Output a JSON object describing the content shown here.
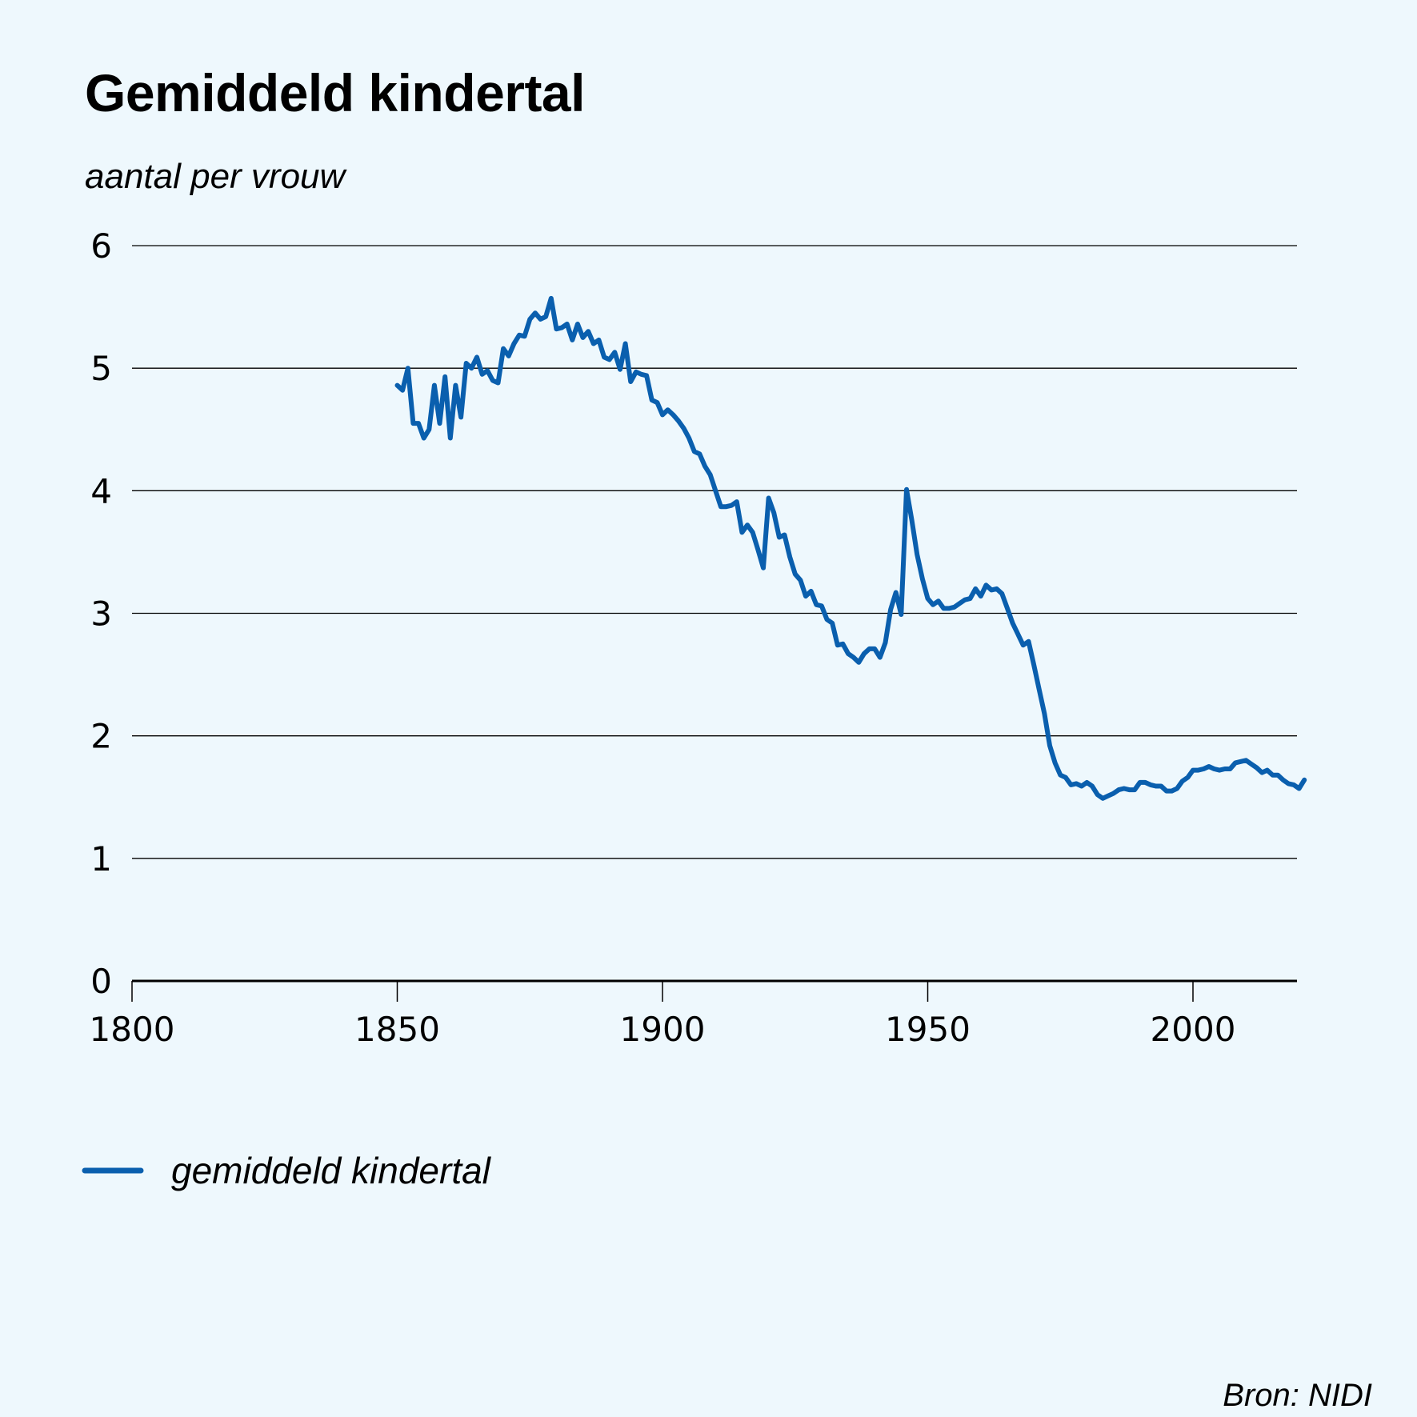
{
  "header": {
    "title": "Gemiddeld kindertal",
    "subtitle": "aantal per vrouw"
  },
  "footer": {
    "source": "Bron: NIDI"
  },
  "colors": {
    "background": "#eef8fd",
    "line": "#0a5fae",
    "grid": "#000000"
  },
  "chart_data": {
    "type": "line",
    "title": "Gemiddeld kindertal",
    "ylabel": "aantal per vrouw",
    "xlabel": "",
    "xlim": [
      1800,
      2020
    ],
    "ylim": [
      0,
      6
    ],
    "grid": true,
    "x_ticks": [
      1800,
      1850,
      1900,
      1950,
      2000
    ],
    "x_tick_labels": [
      "1800",
      "1850",
      "1900",
      "1950",
      "2000"
    ],
    "y_ticks": [
      0,
      1,
      2,
      3,
      4,
      5,
      6
    ],
    "y_tick_labels": [
      "0",
      "1",
      "2",
      "3",
      "4",
      "5",
      "6"
    ],
    "legend": [
      "gemiddeld kindertal"
    ],
    "legend_position": "bottom-left",
    "series": [
      {
        "name": "gemiddeld kindertal",
        "x": [
          1850,
          1851,
          1852,
          1853,
          1854,
          1855,
          1856,
          1857,
          1858,
          1859,
          1860,
          1861,
          1862,
          1863,
          1864,
          1865,
          1866,
          1867,
          1868,
          1869,
          1870,
          1871,
          1872,
          1873,
          1874,
          1875,
          1876,
          1877,
          1878,
          1879,
          1880,
          1881,
          1882,
          1883,
          1884,
          1885,
          1886,
          1887,
          1888,
          1889,
          1890,
          1891,
          1892,
          1893,
          1894,
          1895,
          1896,
          1897,
          1898,
          1899,
          1900,
          1901,
          1902,
          1903,
          1904,
          1905,
          1906,
          1907,
          1908,
          1909,
          1910,
          1911,
          1912,
          1913,
          1914,
          1915,
          1916,
          1917,
          1918,
          1919,
          1920,
          1921,
          1922,
          1923,
          1924,
          1925,
          1926,
          1927,
          1928,
          1929,
          1930,
          1931,
          1932,
          1933,
          1934,
          1935,
          1936,
          1937,
          1938,
          1939,
          1940,
          1941,
          1942,
          1943,
          1944,
          1945,
          1946,
          1947,
          1948,
          1949,
          1950,
          1951,
          1952,
          1953,
          1954,
          1955,
          1956,
          1957,
          1958,
          1959,
          1960,
          1961,
          1962,
          1963,
          1964,
          1965,
          1966,
          1967,
          1968,
          1969,
          1970,
          1971,
          1972,
          1973,
          1974,
          1975,
          1976,
          1977,
          1978,
          1979,
          1980,
          1981,
          1982,
          1983,
          1984,
          1985,
          1986,
          1987,
          1988,
          1989,
          1990,
          1991,
          1992,
          1993,
          1994,
          1995,
          1996,
          1997,
          1998,
          1999,
          2000,
          2001,
          2002,
          2003,
          2004,
          2005,
          2006,
          2007,
          2008,
          2009,
          2010,
          2011,
          2012,
          2013,
          2014,
          2015,
          2016,
          2017,
          2018,
          2019,
          2020,
          2021
        ],
        "values": [
          4.86,
          4.82,
          5.0,
          4.55,
          4.55,
          4.43,
          4.5,
          4.86,
          4.55,
          4.93,
          4.43,
          4.86,
          4.6,
          5.04,
          5.0,
          5.09,
          4.95,
          4.98,
          4.9,
          4.88,
          5.16,
          5.1,
          5.2,
          5.27,
          5.26,
          5.4,
          5.45,
          5.4,
          5.42,
          5.57,
          5.32,
          5.33,
          5.36,
          5.23,
          5.36,
          5.25,
          5.3,
          5.2,
          5.23,
          5.09,
          5.07,
          5.13,
          4.99,
          5.2,
          4.89,
          4.97,
          4.95,
          4.94,
          4.74,
          4.72,
          4.62,
          4.66,
          4.62,
          4.57,
          4.51,
          4.43,
          4.32,
          4.3,
          4.2,
          4.13,
          4.0,
          3.87,
          3.87,
          3.88,
          3.91,
          3.66,
          3.72,
          3.66,
          3.52,
          3.37,
          3.94,
          3.82,
          3.62,
          3.64,
          3.46,
          3.32,
          3.27,
          3.14,
          3.18,
          3.07,
          3.06,
          2.95,
          2.92,
          2.74,
          2.75,
          2.67,
          2.64,
          2.6,
          2.67,
          2.71,
          2.71,
          2.64,
          2.76,
          3.03,
          3.17,
          2.99,
          4.01,
          3.76,
          3.48,
          3.28,
          3.12,
          3.07,
          3.1,
          3.04,
          3.04,
          3.05,
          3.08,
          3.11,
          3.12,
          3.2,
          3.14,
          3.23,
          3.19,
          3.2,
          3.16,
          3.04,
          2.92,
          2.83,
          2.74,
          2.77,
          2.58,
          2.38,
          2.18,
          1.92,
          1.78,
          1.68,
          1.66,
          1.6,
          1.61,
          1.59,
          1.62,
          1.59,
          1.52,
          1.49,
          1.51,
          1.53,
          1.56,
          1.57,
          1.56,
          1.56,
          1.62,
          1.62,
          1.6,
          1.59,
          1.59,
          1.55,
          1.55,
          1.57,
          1.63,
          1.66,
          1.72,
          1.72,
          1.73,
          1.75,
          1.73,
          1.72,
          1.73,
          1.73,
          1.78,
          1.79,
          1.8,
          1.77,
          1.74,
          1.7,
          1.72,
          1.68,
          1.68,
          1.64,
          1.61,
          1.6,
          1.57,
          1.64
        ]
      }
    ]
  }
}
